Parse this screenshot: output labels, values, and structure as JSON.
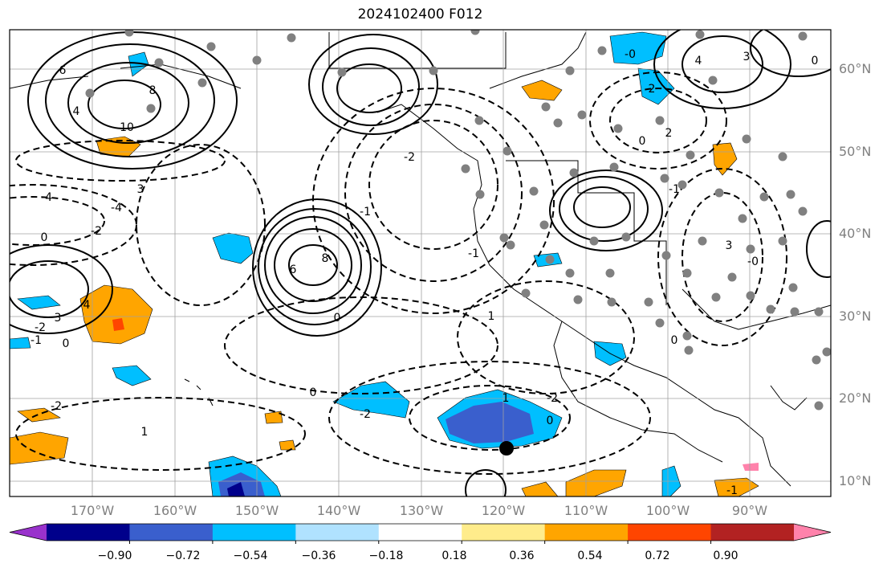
{
  "title": "2024102400 F012",
  "lat_labels": [
    "60°N",
    "50°N",
    "40°N",
    "30°N",
    "20°N",
    "10°N"
  ],
  "lon_labels": [
    "170°W",
    "160°W",
    "150°W",
    "140°W",
    "130°W",
    "120°W",
    "110°W",
    "100°W",
    "90°W"
  ],
  "colorbar": {
    "ticks": [
      "−0.90",
      "−0.72",
      "−0.54",
      "−0.36",
      "−0.18",
      "0.18",
      "0.36",
      "0.54",
      "0.72",
      "0.90"
    ],
    "colors": [
      "#9932cc",
      "#00008b",
      "#3a5fcd",
      "#00bfff",
      "#b0e2ff",
      "#ffffff",
      "#ffec8b",
      "#ffa500",
      "#ff4500",
      "#b22222",
      "#ff82ab"
    ]
  },
  "contour_labels": [
    "6",
    "8",
    "10",
    "4",
    "-4",
    "3",
    "-4",
    "-2",
    "0",
    "3",
    "-2",
    "-1",
    "0",
    "4",
    "6",
    "8",
    "-2",
    "0",
    "1",
    "-2",
    "-2",
    "0",
    "1",
    "-1",
    "-0",
    "2",
    "0",
    "2",
    "-1",
    "3",
    "-0",
    "4",
    "3",
    "0",
    "0",
    "-2",
    "1",
    "0",
    "-1",
    "-1"
  ]
}
